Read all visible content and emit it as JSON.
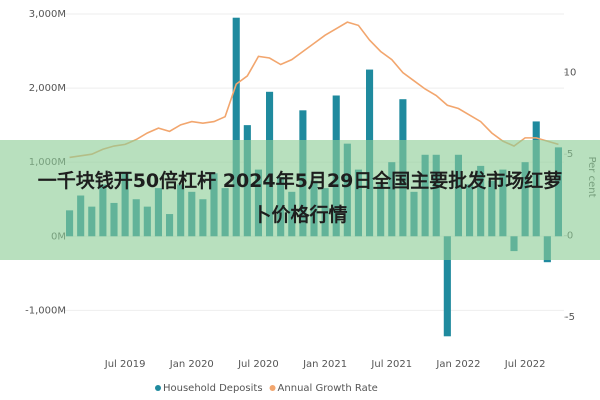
{
  "chart_data": {
    "type": "bar_line",
    "categories": [
      null,
      null,
      null,
      null,
      null,
      "Jul 2019",
      null,
      null,
      null,
      null,
      null,
      "Jan 2020",
      null,
      null,
      null,
      null,
      null,
      "Jul 2020",
      null,
      null,
      null,
      null,
      null,
      "Jan 2021",
      null,
      null,
      null,
      null,
      null,
      "Jul 2021",
      null,
      null,
      null,
      null,
      null,
      "Jan 2022",
      null,
      null,
      null,
      null,
      null,
      "Jul 2022",
      null,
      null,
      null
    ],
    "series": [
      {
        "name": "Household Deposits",
        "color": "#1f8a9e",
        "type": "bar",
        "values": [
          350,
          550,
          400,
          700,
          450,
          850,
          500,
          400,
          650,
          300,
          700,
          600,
          500,
          850,
          650,
          2950,
          1500,
          900,
          1950,
          800,
          600,
          1700,
          750,
          650,
          1900,
          1250,
          900,
          2250,
          700,
          1000,
          1850,
          600,
          1100,
          1100,
          -1350,
          1100,
          700,
          950,
          750,
          900,
          -200,
          1000,
          1550,
          -350,
          1200
        ]
      },
      {
        "name": "Annual Growth Rate",
        "color": "#f2a66e",
        "type": "line",
        "axis": "y2",
        "values": [
          4.8,
          4.9,
          5.0,
          5.3,
          5.5,
          5.6,
          5.9,
          6.3,
          6.6,
          6.4,
          6.8,
          7.0,
          6.9,
          7.0,
          7.3,
          9.3,
          9.8,
          11.0,
          10.9,
          10.5,
          10.8,
          11.3,
          11.8,
          12.3,
          12.7,
          13.1,
          12.9,
          12.0,
          11.3,
          10.8,
          10.0,
          9.5,
          9.0,
          8.6,
          8.0,
          7.8,
          7.4,
          7.0,
          6.3,
          5.8,
          5.5,
          6.0,
          6.0,
          5.8,
          5.6
        ]
      }
    ],
    "ylim": [
      -1400,
      3000
    ],
    "yticks": [
      {
        "value": -1000,
        "label": "-1,000M"
      },
      {
        "value": 0,
        "label": "0M"
      },
      {
        "value": 1000,
        "label": "1,000M"
      },
      {
        "value": 2000,
        "label": "2,000M"
      },
      {
        "value": 3000,
        "label": "3,000M"
      }
    ],
    "y2lim": [
      -6.4,
      13.6
    ],
    "y2ticks": [
      -5,
      0,
      5,
      10
    ],
    "y2label": "Per cent",
    "grid": true,
    "legend": "bottom"
  },
  "overlay_text": "一千块钱开50倍杠杆 2024年5月29日全国主要批发市场红萝卜价格行情"
}
